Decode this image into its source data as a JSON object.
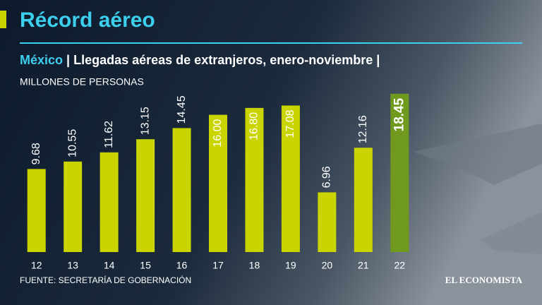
{
  "chart_data": {
    "type": "bar",
    "title": "Récord aéreo",
    "subtitle_country": "México",
    "subtitle": "| Llegadas aéreas de extranjeros, enero-noviembre |",
    "unit_label": "MILLONES DE PERSONAS",
    "source": "FUENTE: SECRETARÍA DE GOBERNACIÓN",
    "brand": "EL ECONOMISTA",
    "categories": [
      "12",
      "13",
      "14",
      "15",
      "16",
      "17",
      "18",
      "19",
      "20",
      "21",
      "22"
    ],
    "values": [
      9.68,
      10.55,
      11.62,
      13.15,
      14.45,
      16.0,
      16.8,
      17.08,
      6.96,
      12.16,
      18.45
    ],
    "value_labels": [
      "9.68",
      "10.55",
      "11.62",
      "13.15",
      "14.45",
      "16.00",
      "16.80",
      "17.08",
      "6.96",
      "12.16",
      "18.45"
    ],
    "colors": [
      "#c9d400",
      "#c9d400",
      "#c9d400",
      "#c9d400",
      "#c9d400",
      "#c9d400",
      "#c9d400",
      "#c9d400",
      "#c9d400",
      "#c9d400",
      "#6f9a1e"
    ],
    "ylim": [
      0,
      20
    ]
  }
}
